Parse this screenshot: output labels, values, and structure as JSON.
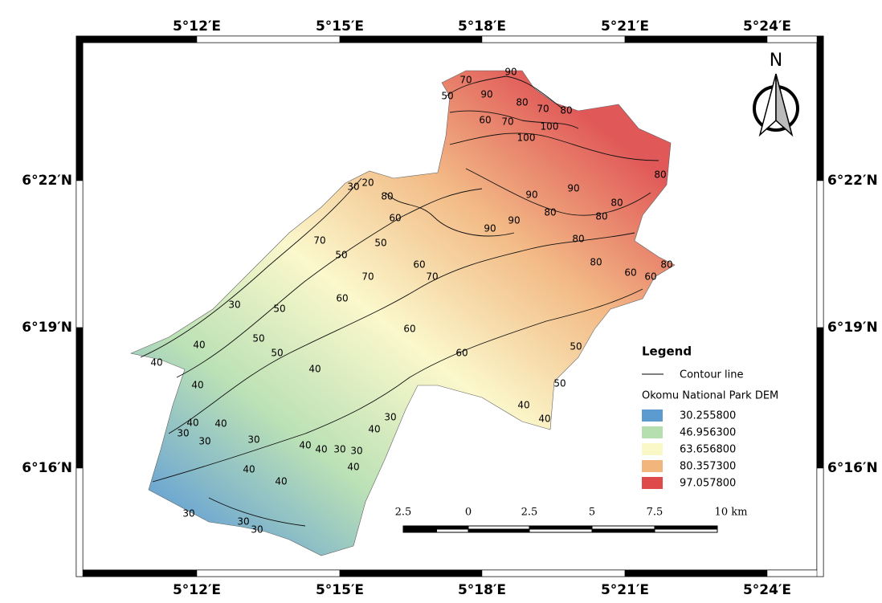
{
  "map": {
    "top_labels": [
      "5°12′E",
      "5°15′E",
      "5°18′E",
      "5°21′E",
      "5°24′E"
    ],
    "bottom_labels": [
      "5°12′E",
      "5°15′E",
      "5°18′E",
      "5°21′E",
      "5°24′E"
    ],
    "left_labels": [
      "6°22′N",
      "6°19′N",
      "6°16′N"
    ],
    "right_labels": [
      "6°22′N",
      "6°19′N",
      "6°16′N"
    ],
    "north": "N",
    "legend": {
      "title": "Legend",
      "contour": "Contour line",
      "layer": "Okomu National Park DEM",
      "classes": [
        {
          "label": "30.255800",
          "color": "#5b9bd0"
        },
        {
          "label": "46.956300",
          "color": "#b6dfb0"
        },
        {
          "label": "63.656800",
          "color": "#fbf8c8"
        },
        {
          "label": "80.357300",
          "color": "#f2b57c"
        },
        {
          "label": "97.057800",
          "color": "#de4a4a"
        }
      ]
    },
    "scale": {
      "labels": [
        "2.5",
        "0",
        "2.5",
        "5",
        "7.5",
        "10 km"
      ]
    },
    "contour_labels": [
      "90",
      "70",
      "50",
      "90",
      "80",
      "70",
      "80",
      "60",
      "70",
      "100",
      "100",
      "30",
      "20",
      "80",
      "90",
      "90",
      "80",
      "80",
      "80",
      "90",
      "90",
      "80",
      "80",
      "60",
      "50",
      "70",
      "50",
      "60",
      "70",
      "70",
      "80",
      "60",
      "60",
      "80",
      "30",
      "50",
      "60",
      "60",
      "60",
      "50",
      "50",
      "40",
      "40",
      "40",
      "40",
      "50",
      "50",
      "40",
      "40",
      "40",
      "30",
      "30",
      "30",
      "40",
      "30",
      "40",
      "40",
      "30",
      "30",
      "40",
      "40",
      "40",
      "40",
      "30",
      "30",
      "30"
    ]
  }
}
